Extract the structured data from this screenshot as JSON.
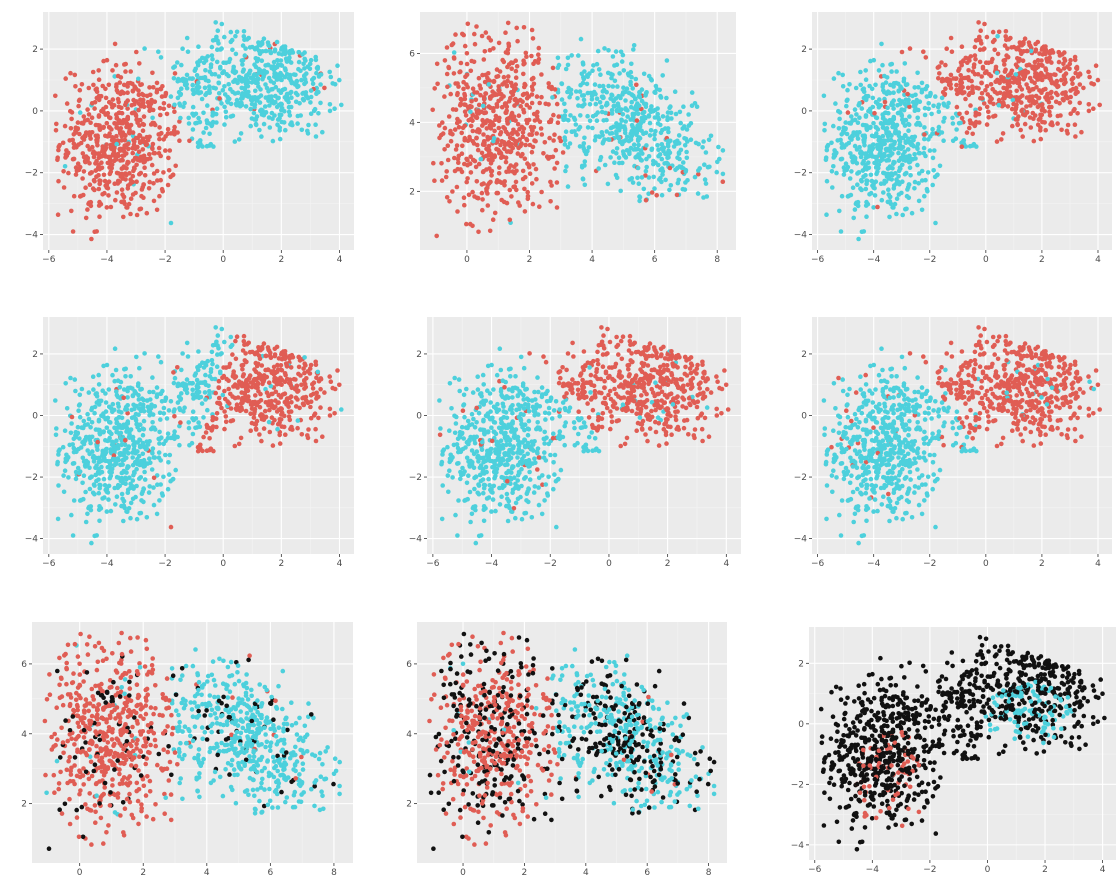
{
  "chart_data": [
    {
      "type": "scatter",
      "dataset": "A",
      "xlim": [
        -6.2,
        4.5
      ],
      "ylim": [
        -4.5,
        3.2
      ],
      "xticks": [
        -6,
        -4,
        -2,
        0,
        2,
        4
      ],
      "yticks": [
        -4,
        -2,
        0,
        2
      ],
      "coloring": "split",
      "split": {
        "slope": -0.55,
        "intercept": -1.6,
        "left": "red",
        "right": "cyan"
      }
    },
    {
      "type": "scatter",
      "dataset": "B",
      "xlim": [
        -1.5,
        8.6
      ],
      "ylim": [
        0.3,
        7.2
      ],
      "xticks": [
        0,
        2,
        4,
        6,
        8
      ],
      "yticks": [
        2,
        4,
        6
      ],
      "coloring": "split",
      "split": {
        "slope": -0.1,
        "intercept": 3.4,
        "left": "red",
        "right": "cyan"
      }
    },
    {
      "type": "scatter",
      "dataset": "A",
      "xlim": [
        -6.2,
        4.5
      ],
      "ylim": [
        -4.5,
        3.2
      ],
      "xticks": [
        -6,
        -4,
        -2,
        0,
        2,
        4
      ],
      "yticks": [
        -4,
        -2,
        0,
        2
      ],
      "coloring": "split",
      "split": {
        "slope": -0.8,
        "intercept": -1.1,
        "left": "cyan",
        "right": "red"
      }
    },
    {
      "type": "scatter",
      "dataset": "A",
      "xlim": [
        -6.2,
        4.5
      ],
      "ylim": [
        -4.5,
        3.2
      ],
      "xticks": [
        -6,
        -4,
        -2,
        0,
        2,
        4
      ],
      "yticks": [
        -4,
        -2,
        0,
        2
      ],
      "coloring": "split",
      "split": {
        "slope": 0.4,
        "intercept": -0.6,
        "left": "cyan",
        "right": "red"
      }
    },
    {
      "type": "scatter",
      "dataset": "A",
      "xlim": [
        -6.2,
        4.5
      ],
      "ylim": [
        -4.5,
        3.2
      ],
      "xticks": [
        -6,
        -4,
        -2,
        0,
        2,
        4
      ],
      "yticks": [
        -4,
        -2,
        0,
        2
      ],
      "coloring": "split",
      "split": {
        "slope": -0.9,
        "intercept": -1.0,
        "left": "cyan",
        "right": "red"
      }
    },
    {
      "type": "scatter",
      "dataset": "A",
      "xlim": [
        -6.2,
        4.5
      ],
      "ylim": [
        -4.5,
        3.2
      ],
      "xticks": [
        -6,
        -4,
        -2,
        0,
        2,
        4
      ],
      "yticks": [
        -4,
        -2,
        0,
        2
      ],
      "coloring": "split",
      "split": {
        "slope": -0.8,
        "intercept": -1.1,
        "left": "cyan",
        "right": "red"
      }
    },
    {
      "type": "scatter",
      "dataset": "B",
      "xlim": [
        -1.5,
        8.6
      ],
      "ylim": [
        0.3,
        7.2
      ],
      "xticks": [
        0,
        2,
        4,
        6,
        8
      ],
      "yticks": [
        2,
        4,
        6
      ],
      "coloring": "split_black",
      "black_fraction": 0.1,
      "split": {
        "slope": -0.1,
        "intercept": 3.4,
        "left": "red",
        "right": "cyan"
      }
    },
    {
      "type": "scatter",
      "dataset": "B",
      "xlim": [
        -1.5,
        8.6
      ],
      "ylim": [
        0.3,
        7.2
      ],
      "xticks": [
        0,
        2,
        4,
        6,
        8
      ],
      "yticks": [
        2,
        4,
        6
      ],
      "coloring": "split_black",
      "black_fraction": 0.4,
      "split": {
        "slope": -0.1,
        "intercept": 3.4,
        "left": "red",
        "right": "cyan"
      }
    },
    {
      "type": "scatter",
      "dataset": "A",
      "xlim": [
        -6.2,
        4.5
      ],
      "ylim": [
        -4.5,
        3.2
      ],
      "xticks": [
        -6,
        -4,
        -2,
        0,
        2,
        4
      ],
      "yticks": [
        -4,
        -2,
        0,
        2
      ],
      "coloring": "mostly_black",
      "cyan_region": {
        "cx": 1.5,
        "cy": 0.3,
        "rx": 1.6,
        "ry": 1.1
      },
      "red_region": {
        "cx": -3.3,
        "cy": -2.2,
        "rx": 1.4,
        "ry": 2.0
      }
    }
  ],
  "colors": {
    "red": "#E05D54",
    "cyan": "#4DD0DC",
    "black": "#111111",
    "panel_bg": "#EBEBEB",
    "grid": "#FFFFFF",
    "tick_text": "#4D4D4D"
  }
}
